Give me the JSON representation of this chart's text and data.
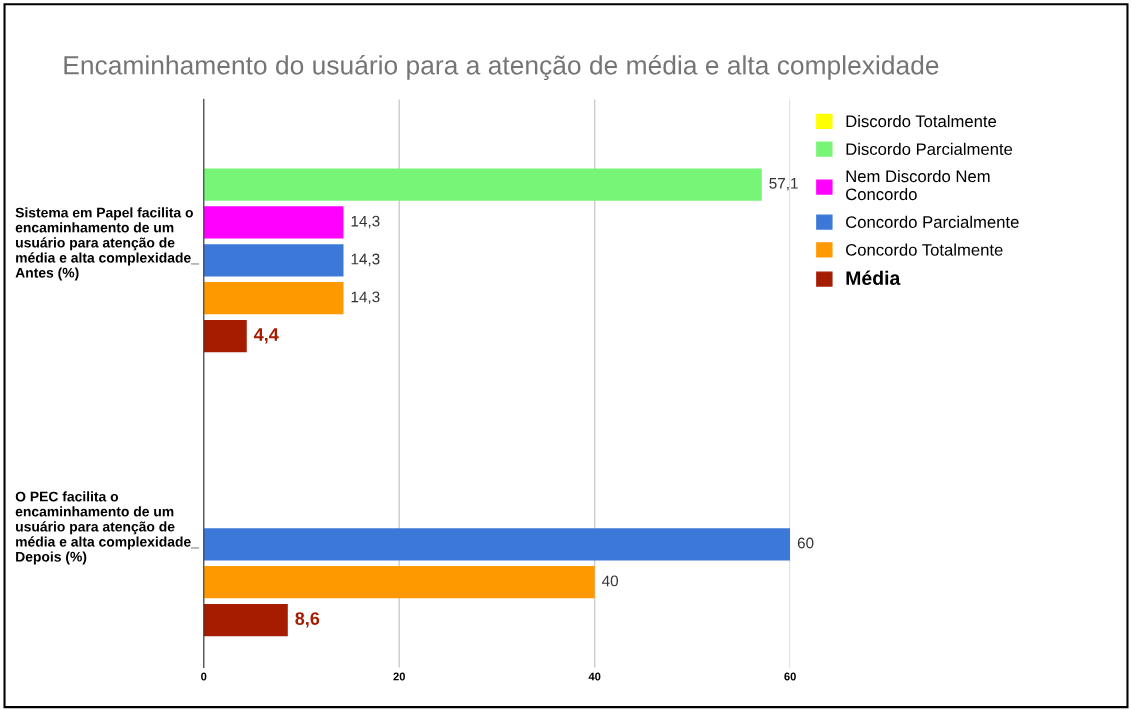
{
  "chart_data": {
    "type": "bar",
    "orientation": "horizontal",
    "title": "Encaminhamento do usuário para a atenção de média e alta complexidade",
    "categories": [
      "Sistema em Papel facilita o encaminhamento de um usuário para atenção de média e alta complexidade_ Antes (%)",
      "O PEC facilita o encaminhamento de um usuário para atenção de média e alta complexidade_ Depois (%)"
    ],
    "series": [
      {
        "name": "Discordo Totalmente",
        "color": "#ffff00",
        "values": [
          null,
          null
        ]
      },
      {
        "name": "Discordo Parcialmente",
        "color": "#77f577",
        "values": [
          57.1,
          null
        ],
        "value_labels": [
          "57,1",
          null
        ]
      },
      {
        "name": "Nem Discordo Nem Concordo",
        "color": "#ff00ff",
        "values": [
          14.3,
          null
        ],
        "value_labels": [
          "14,3",
          null
        ]
      },
      {
        "name": "Concordo Parcialmente",
        "color": "#3c78d8",
        "values": [
          14.3,
          60
        ],
        "value_labels": [
          "14,3",
          "60"
        ]
      },
      {
        "name": "Concordo Totalmente",
        "color": "#ff9900",
        "values": [
          14.3,
          40
        ],
        "value_labels": [
          "14,3",
          "40"
        ]
      },
      {
        "name": "Média",
        "color": "#a61c00",
        "values": [
          4.4,
          8.6
        ],
        "value_labels": [
          "4,4",
          "8,6"
        ]
      }
    ],
    "xlim": [
      0,
      60
    ],
    "xticks": [
      0,
      20,
      40,
      60
    ],
    "grid": "x",
    "legend": "top right"
  }
}
